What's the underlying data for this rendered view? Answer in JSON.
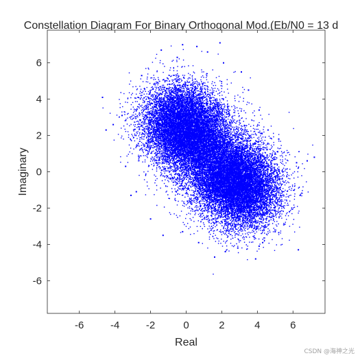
{
  "figure": {
    "watermark": "CSDN @海神之光"
  },
  "chart_data": {
    "type": "scatter",
    "title": "Constellation Diagram For Binary Orthogonal Mod.(Eb/N0 = 13 d",
    "xlabel": "Real",
    "ylabel": "Imaginary",
    "xlim": [
      -7.8,
      7.8
    ],
    "ylim": [
      -7.8,
      7.8
    ],
    "xticks": [
      -6,
      -4,
      -2,
      0,
      2,
      4,
      6
    ],
    "yticks": [
      6,
      4,
      2,
      0,
      -2,
      -4,
      -6
    ],
    "grid": false,
    "legend": "none",
    "marker_color": "#0000ff",
    "series": [
      {
        "constellation_points": [
          [
            0.5,
            1.8
          ],
          [
            2.3,
            -0.2
          ],
          [
            -0.4,
            2.8
          ],
          [
            3.2,
            -1.0
          ]
        ],
        "spread_std": 1.1,
        "values": [
          [
            -4.7,
            4.1
          ],
          [
            -4.5,
            2.3
          ],
          [
            -4.1,
            2.6
          ],
          [
            -3.4,
            0.3
          ],
          [
            -3.6,
            3.1
          ],
          [
            -3.1,
            -1.3
          ],
          [
            -2.5,
            5.3
          ],
          [
            -2.7,
            4.1
          ],
          [
            -1.4,
            6.7
          ],
          [
            -0.5,
            6.3
          ],
          [
            -0.2,
            7.0
          ],
          [
            0.6,
            6.9
          ],
          [
            1.2,
            6.6
          ],
          [
            1.9,
            7.1
          ],
          [
            2.1,
            6.0
          ],
          [
            3.1,
            5.5
          ],
          [
            3.5,
            4.5
          ],
          [
            4.1,
            3.4
          ],
          [
            4.6,
            2.3
          ],
          [
            5.2,
            1.8
          ],
          [
            6.2,
            0.5
          ],
          [
            6.8,
            0.6
          ],
          [
            7.2,
            0.8
          ],
          [
            6.4,
            -1.3
          ],
          [
            5.8,
            -2.2
          ],
          [
            5.0,
            -3.3
          ],
          [
            4.3,
            -3.9
          ],
          [
            3.9,
            -4.8
          ],
          [
            2.9,
            -4.2
          ],
          [
            2.2,
            -4.4
          ],
          [
            1.6,
            -4.7
          ],
          [
            0.7,
            -3.9
          ],
          [
            -0.2,
            -3.3
          ],
          [
            -1.3,
            -3.5
          ],
          [
            -2.0,
            -2.6
          ],
          [
            -2.8,
            -1.1
          ],
          [
            6.3,
            -4.3
          ],
          [
            4.1,
            -4.1
          ]
        ]
      }
    ]
  }
}
